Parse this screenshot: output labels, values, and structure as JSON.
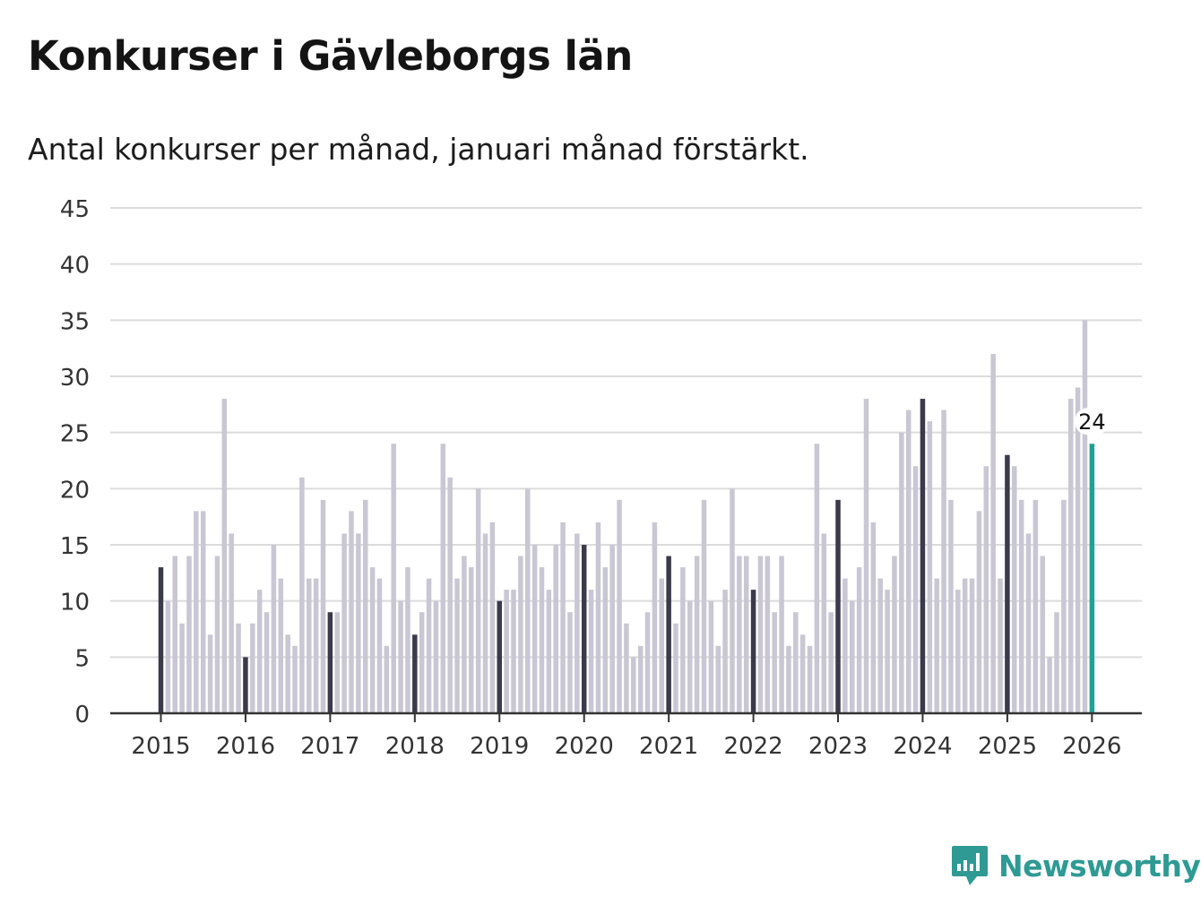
{
  "header": {
    "title": "Konkurser i Gävleborgs län",
    "subtitle": "Antal konkurser per månad, januari månad förstärkt."
  },
  "brand": {
    "name": "Newsworthy",
    "logo_icon": "newsworthy-logo-icon"
  },
  "colors": {
    "regular_bar": "#c8c7d3",
    "january_bar": "#3b3a4b",
    "latest_bar": "#1fa194",
    "grid": "#dcdcdc",
    "axis": "#333333"
  },
  "chart_data": {
    "type": "bar",
    "x_start": "2015-01",
    "x_end": "2026-01",
    "ylim": [
      0,
      45
    ],
    "y_ticks": [
      0,
      5,
      10,
      15,
      20,
      25,
      30,
      35,
      40,
      45
    ],
    "x_tick_labels": [
      "2015",
      "2016",
      "2017",
      "2018",
      "2019",
      "2020",
      "2021",
      "2022",
      "2023",
      "2024",
      "2025",
      "2026"
    ],
    "grid": true,
    "highlight": "January bars drawn darker; latest month highlighted",
    "latest_label": "24",
    "values": [
      13,
      10,
      14,
      8,
      14,
      18,
      18,
      7,
      14,
      28,
      16,
      8,
      5,
      8,
      11,
      9,
      15,
      12,
      7,
      6,
      21,
      12,
      12,
      19,
      9,
      9,
      16,
      18,
      16,
      19,
      13,
      12,
      6,
      24,
      10,
      13,
      7,
      9,
      12,
      10,
      24,
      21,
      12,
      14,
      13,
      20,
      16,
      17,
      10,
      11,
      11,
      14,
      20,
      15,
      13,
      11,
      15,
      17,
      9,
      16,
      15,
      11,
      17,
      13,
      15,
      19,
      8,
      5,
      6,
      9,
      17,
      12,
      14,
      8,
      13,
      10,
      14,
      19,
      10,
      6,
      11,
      20,
      14,
      14,
      11,
      14,
      14,
      9,
      14,
      6,
      9,
      7,
      6,
      24,
      16,
      9,
      19,
      12,
      10,
      13,
      28,
      17,
      12,
      11,
      14,
      25,
      27,
      22,
      28,
      26,
      12,
      27,
      19,
      11,
      12,
      12,
      18,
      22,
      32,
      12,
      23,
      22,
      19,
      16,
      19,
      14,
      5,
      9,
      19,
      28,
      29,
      35,
      24
    ]
  }
}
